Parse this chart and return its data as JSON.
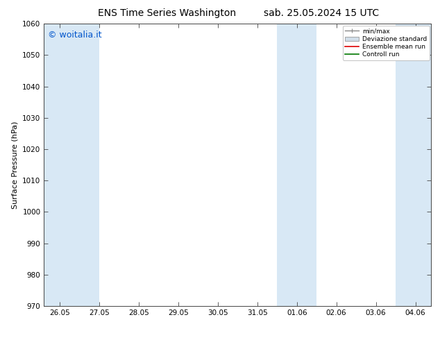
{
  "title_left": "ENS Time Series Washington",
  "title_right": "sab. 25.05.2024 15 UTC",
  "ylabel": "Surface Pressure (hPa)",
  "ylim": [
    970,
    1060
  ],
  "yticks": [
    970,
    980,
    990,
    1000,
    1010,
    1020,
    1030,
    1040,
    1050,
    1060
  ],
  "xtick_labels": [
    "26.05",
    "27.05",
    "28.05",
    "29.05",
    "30.05",
    "31.05",
    "01.06",
    "02.06",
    "03.06",
    "04.06"
  ],
  "xtick_positions": [
    0,
    1,
    2,
    3,
    4,
    5,
    6,
    7,
    8,
    9
  ],
  "xlim_min": -0.4,
  "xlim_max": 9.4,
  "shaded_bands": [
    {
      "x_start": -0.4,
      "x_end": 1.0,
      "color": "#d8e8f5"
    },
    {
      "x_start": 5.5,
      "x_end": 6.5,
      "color": "#d8e8f5"
    },
    {
      "x_start": 8.5,
      "x_end": 9.4,
      "color": "#d8e8f5"
    }
  ],
  "watermark_text": "© woitalia.it",
  "watermark_color": "#0055cc",
  "watermark_fontsize": 9,
  "legend_labels": [
    "min/max",
    "Deviazione standard",
    "Ensemble mean run",
    "Controll run"
  ],
  "background_color": "#ffffff",
  "title_fontsize": 10,
  "axis_fontsize": 8,
  "tick_fontsize": 7.5
}
